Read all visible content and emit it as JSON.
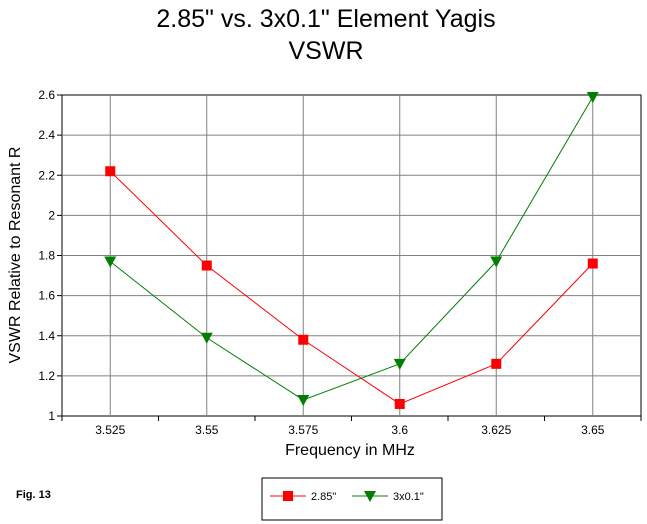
{
  "figure_label": "Fig. 13",
  "colors": {
    "series_285": "#ff0000",
    "series_3x01": "#008000",
    "grid": "#808080",
    "background": "#ffffff"
  },
  "chart_data": {
    "type": "line",
    "title": "2.85\" vs. 3x0.1\" Element Yagis",
    "subtitle": "VSWR",
    "xlabel": "Frequency in MHz",
    "ylabel": "VSWR Relative to Resonant R",
    "categories": [
      "3.525",
      "3.55",
      "3.575",
      "3.6",
      "3.625",
      "3.65"
    ],
    "x": [
      3.525,
      3.55,
      3.575,
      3.6,
      3.625,
      3.65
    ],
    "ylim": [
      1,
      2.6
    ],
    "yticks": [
      1,
      1.2,
      1.4,
      1.6,
      1.8,
      2,
      2.2,
      2.4,
      2.6
    ],
    "ytick_labels": [
      "1",
      "1.2",
      "1.4",
      "1.6",
      "1.8",
      "2",
      "2.2",
      "2.4",
      "2.6"
    ],
    "grid": true,
    "legend_position": "bottom-center",
    "series": [
      {
        "name": "2.85\"",
        "marker": "square",
        "color": "#ff0000",
        "values": [
          2.22,
          1.75,
          1.38,
          1.06,
          1.26,
          1.76
        ]
      },
      {
        "name": "3x0.1\"",
        "marker": "triangle-down",
        "color": "#008000",
        "values": [
          1.77,
          1.39,
          1.08,
          1.26,
          1.77,
          2.59
        ]
      }
    ]
  }
}
